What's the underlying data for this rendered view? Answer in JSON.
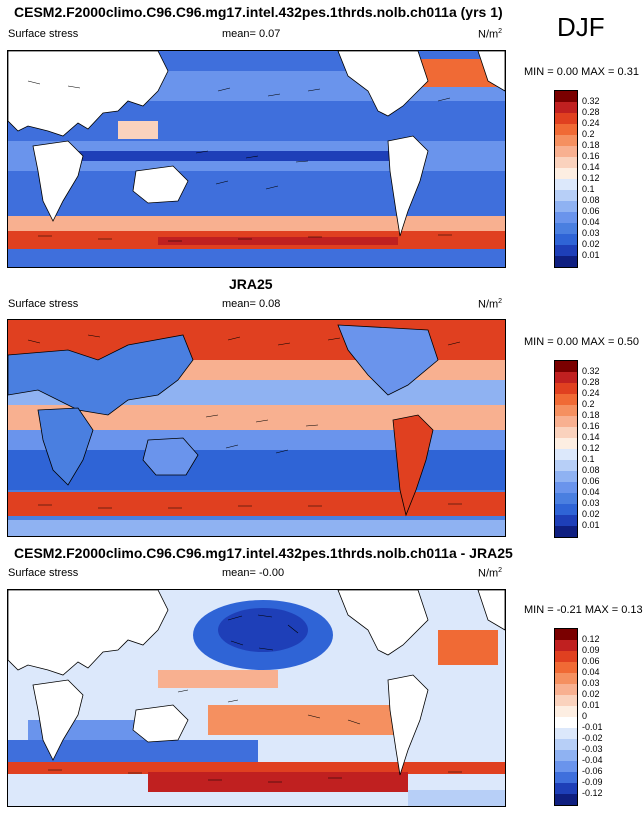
{
  "season": "DJF",
  "panels": [
    {
      "title": "CESM2.F2000climo.C96.C96.mg17.intel.432pes.1thrds.nolb.ch011a (yrs 1)",
      "variable": "Surface stress",
      "mean_label": "mean=  0.07",
      "units": "N/m",
      "units_sup": "2",
      "minmax": "MIN =  0.00 MAX =  0.31",
      "colors": [
        "#7a0000",
        "#c02020",
        "#e04020",
        "#f06a35",
        "#f59060",
        "#f8b090",
        "#fad2bd",
        "#fdeee2",
        "#dce8fb",
        "#b7cff7",
        "#8fb2f2",
        "#6a94ec",
        "#4a7fe0",
        "#2f64d6",
        "#1e3fb8",
        "#0f1f80"
      ],
      "levels": [
        "0.32",
        "0.28",
        "0.24",
        "0.2",
        "0.18",
        "0.16",
        "0.14",
        "0.12",
        "0.1",
        "0.08",
        "0.06",
        "0.04",
        "0.03",
        "0.02",
        "0.01"
      ]
    },
    {
      "title": "JRA25",
      "variable": "Surface stress",
      "mean_label": "mean=  0.08",
      "units": "N/m",
      "units_sup": "2",
      "minmax": "MIN =  0.00 MAX =  0.50",
      "colors": [
        "#7a0000",
        "#c02020",
        "#e04020",
        "#f06a35",
        "#f59060",
        "#f8b090",
        "#fad2bd",
        "#fdeee2",
        "#dce8fb",
        "#b7cff7",
        "#8fb2f2",
        "#6a94ec",
        "#4a7fe0",
        "#2f64d6",
        "#1e3fb8",
        "#0f1f80"
      ],
      "levels": [
        "0.32",
        "0.28",
        "0.24",
        "0.2",
        "0.18",
        "0.16",
        "0.14",
        "0.12",
        "0.1",
        "0.08",
        "0.06",
        "0.04",
        "0.03",
        "0.02",
        "0.01"
      ]
    },
    {
      "title": "CESM2.F2000climo.C96.C96.mg17.intel.432pes.1thrds.nolb.ch011a - JRA25",
      "variable": "Surface stress",
      "mean_label": "mean=  -0.00",
      "units": "N/m",
      "units_sup": "2",
      "minmax": "MIN = -0.21 MAX =  0.13",
      "colors": [
        "#7a0000",
        "#c02020",
        "#e04020",
        "#f06a35",
        "#f59060",
        "#f8b090",
        "#fad2bd",
        "#fdeee2",
        "#ffffff",
        "#dce8fb",
        "#b7cff7",
        "#8fb2f2",
        "#6a94ec",
        "#3f6fdc",
        "#1e3fb8",
        "#0f1f80"
      ],
      "levels": [
        "0.12",
        "0.09",
        "0.06",
        "0.04",
        "0.03",
        "0.02",
        "0.01",
        "0",
        "-0.01",
        "-0.02",
        "-0.03",
        "-0.04",
        "-0.06",
        "-0.09",
        "-0.12"
      ]
    }
  ]
}
